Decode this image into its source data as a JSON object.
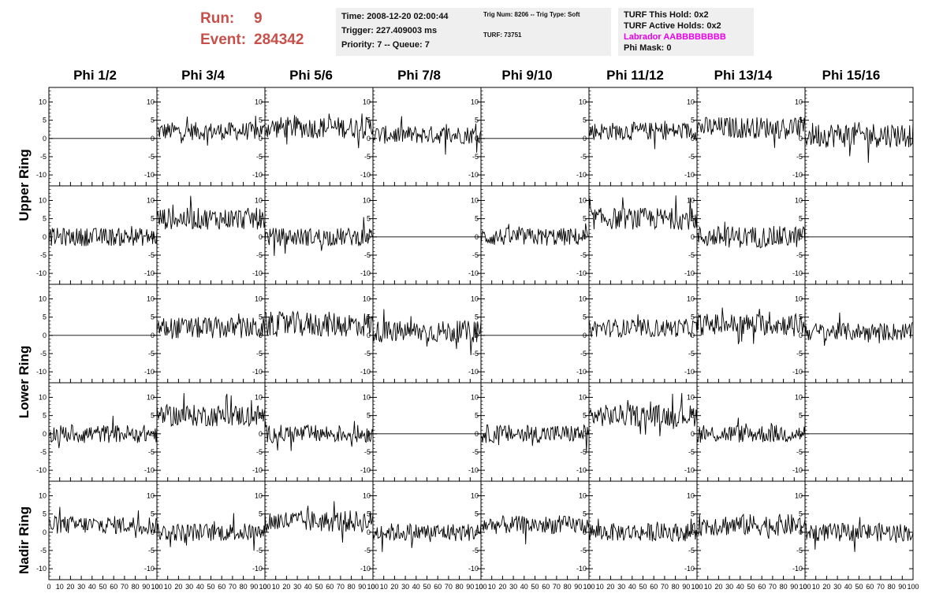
{
  "header": {
    "run_label": "Run:",
    "run_value": "9",
    "event_label": "Event:",
    "event_value": "284342"
  },
  "info_time": {
    "time": "Time: 2008-12-20 02:00:44",
    "trigger": "Trigger: 227.409003 ms",
    "priority": "Priority: 7 -- Queue: 7"
  },
  "info_trig": {
    "trig": "Trig Num: 8206 -- Trig Type: Soft",
    "turf": "TURF: 73751"
  },
  "info_turf": {
    "this_hold": "TURF This Hold: 0x2",
    "active_holds": "TURF Active Holds: 0x2",
    "labrador": "Labrador AABBBBBBBB",
    "phi_mask": "Phi Mask: 0"
  },
  "columns": [
    "Phi 1/2",
    "Phi 3/4",
    "Phi 5/6",
    "Phi 7/8",
    "Phi 9/10",
    "Phi 11/12",
    "Phi 13/14",
    "Phi 15/16"
  ],
  "rows": [
    "Upper Ring",
    "Lower Ring",
    "Nadir Ring"
  ],
  "chart_data": {
    "type": "line",
    "xlim": [
      0,
      100
    ],
    "ylim": [
      -13,
      14
    ],
    "y_ticks": [
      -10,
      -5,
      0,
      5,
      10
    ],
    "x_ticks": [
      0,
      10,
      20,
      30,
      40,
      50,
      60,
      70,
      80,
      90,
      100
    ],
    "panel_rows": 5,
    "panel_cols": 8,
    "panels": [
      [
        {
          "flat": true
        },
        {
          "level": 2,
          "amp": 2.5
        },
        {
          "level": 3,
          "amp": 3
        },
        {
          "level": 1,
          "amp": 2.5
        },
        {
          "flat": true
        },
        {
          "level": 2,
          "amp": 2.5
        },
        {
          "level": 3,
          "amp": 3
        },
        {
          "level": 1,
          "amp": 3.5
        }
      ],
      [
        {
          "level": 0,
          "amp": 2.5
        },
        {
          "level": 5,
          "amp": 3
        },
        {
          "level": 0,
          "amp": 2.5
        },
        {
          "flat": true
        },
        {
          "level": 0,
          "amp": 2.5
        },
        {
          "level": 5,
          "amp": 3
        },
        {
          "level": 0,
          "amp": 3
        },
        {
          "flat": true
        }
      ],
      [
        {
          "flat": true
        },
        {
          "level": 2,
          "amp": 3
        },
        {
          "level": 3,
          "amp": 3.5
        },
        {
          "level": 1,
          "amp": 3
        },
        {
          "flat": true
        },
        {
          "level": 2,
          "amp": 2.5
        },
        {
          "level": 3,
          "amp": 3
        },
        {
          "level": 1,
          "amp": 2.5
        }
      ],
      [
        {
          "level": 0,
          "amp": 2.5
        },
        {
          "level": 5,
          "amp": 3
        },
        {
          "level": 0,
          "amp": 2.5
        },
        {
          "flat": true
        },
        {
          "level": 0,
          "amp": 2.5
        },
        {
          "level": 5,
          "amp": 3
        },
        {
          "level": 0,
          "amp": 2.5
        },
        {
          "flat": true
        }
      ],
      [
        {
          "level": 2,
          "amp": 2.5
        },
        {
          "level": 0,
          "amp": 2.5
        },
        {
          "level": 3,
          "amp": 3
        },
        {
          "level": 0,
          "amp": 2.5
        },
        {
          "level": 2,
          "amp": 2.5
        },
        {
          "level": 0,
          "amp": 2.5
        },
        {
          "level": 2,
          "amp": 3
        },
        {
          "level": 0,
          "amp": 2.5
        }
      ]
    ]
  }
}
